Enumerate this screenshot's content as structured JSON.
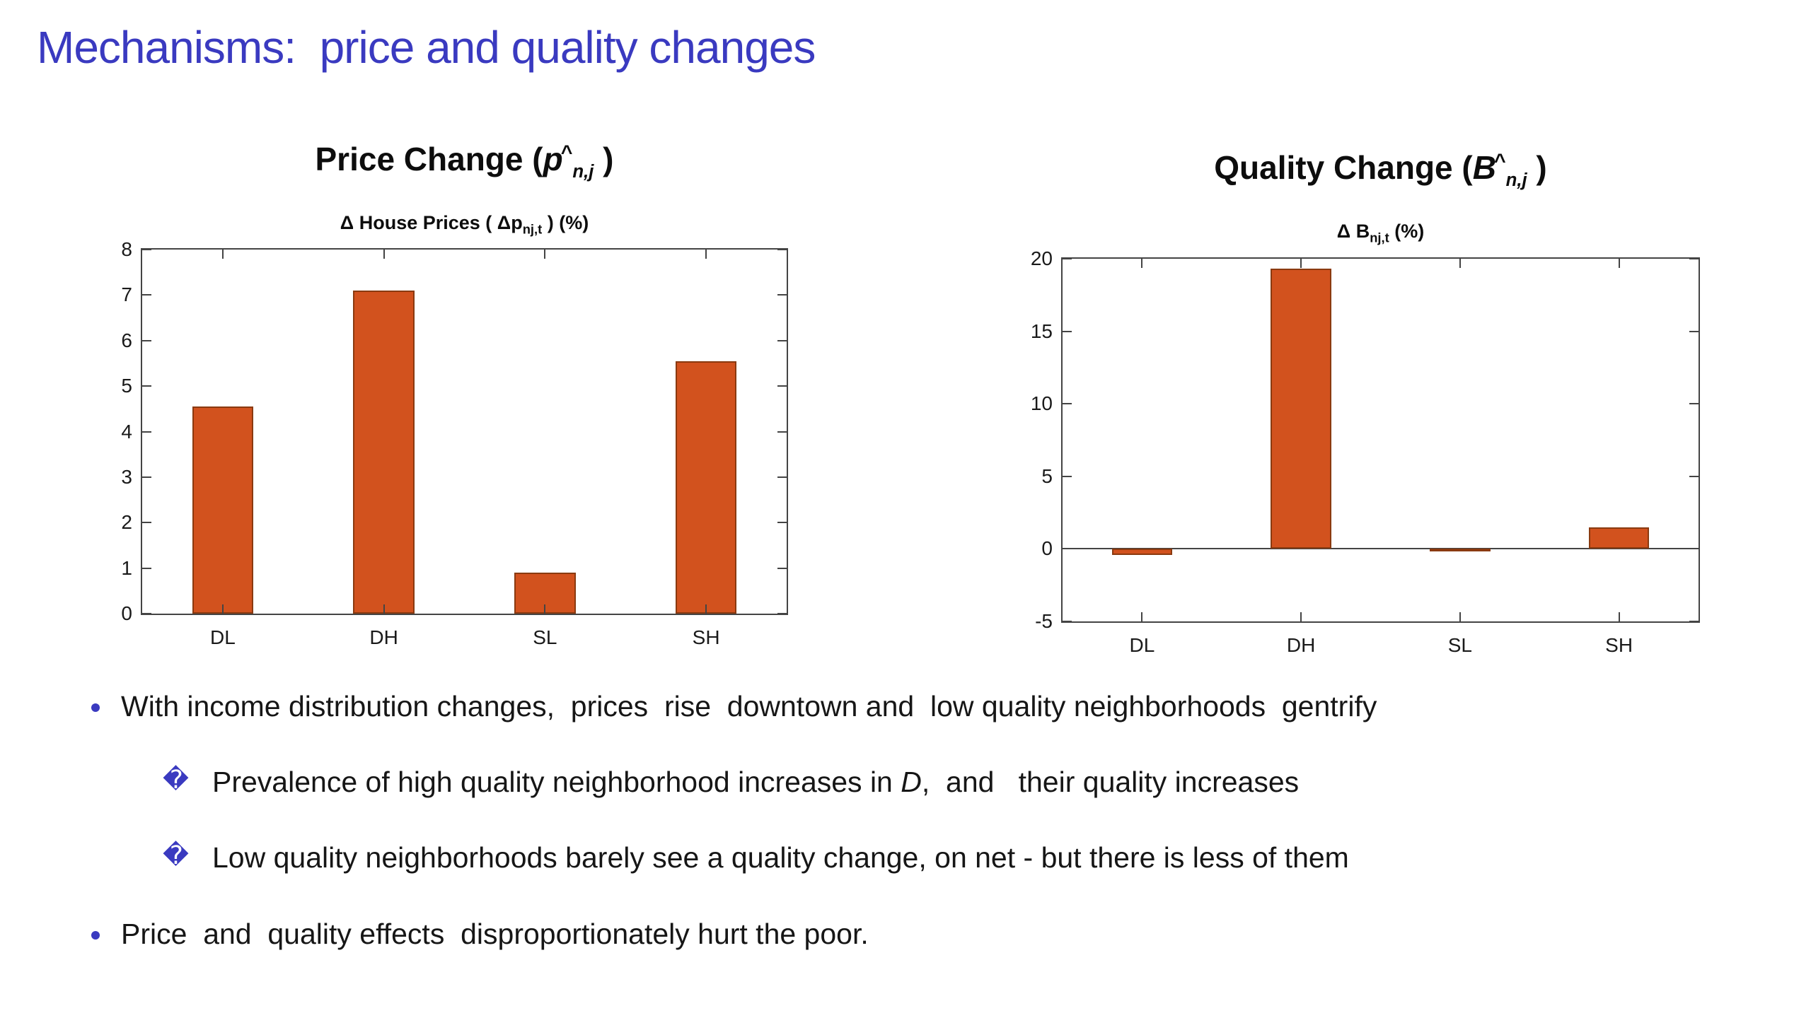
{
  "slide": {
    "title": "Mechanisms:  price and quality changes",
    "colors": {
      "title": "#3a3ac0",
      "bullet_marker": "#3a3ac0",
      "bar": "#d2521e",
      "bar_edge": "#8a3a10",
      "axis": "#444444"
    },
    "markers": {
      "dot": "•",
      "diamond": "�"
    },
    "bullets": [
      {
        "level": 1,
        "marker": "dot",
        "segments": [
          {
            "t": "With income distribution changes,  prices  rise  downtown and  low quality neighborhoods  gentrify"
          }
        ]
      },
      {
        "level": 2,
        "marker": "diamond",
        "segments": [
          {
            "t": "Prevalence of high quality neighborhood increases in "
          },
          {
            "t": "D",
            "i": true
          },
          {
            "t": ",  and   their quality increases"
          }
        ]
      },
      {
        "level": 2,
        "marker": "diamond",
        "segments": [
          {
            "t": "Low quality neighborhoods barely see a quality change, on net - but there is less of them"
          }
        ]
      },
      {
        "level": 1,
        "marker": "dot",
        "segments": [
          {
            "t": "Price  and  quality effects  disproportionately hurt the poor."
          }
        ]
      }
    ]
  },
  "chart_data": [
    {
      "type": "bar",
      "title": "Price Change (p̂n,j)",
      "title_prefix": "Price Change (",
      "title_var": "p",
      "title_hat": "^",
      "title_sub": "n,j",
      "title_suffix": " )",
      "subtitle": "Δ House Prices ( Δp_nj,t ) (%)",
      "subtitle_prefix": "Δ House Prices ( Δp",
      "subtitle_sub": "nj,t",
      "subtitle_suffix": " ) (%)",
      "categories": [
        "DL",
        "DH",
        "SL",
        "SH"
      ],
      "values": [
        4.55,
        7.1,
        0.9,
        5.55
      ],
      "xlabel": "",
      "ylabel": "",
      "ylim": [
        0,
        8
      ],
      "yticks": [
        0,
        1,
        2,
        3,
        4,
        5,
        6,
        7,
        8
      ],
      "grid": false,
      "legend": "none"
    },
    {
      "type": "bar",
      "title": "Quality Change (B̂n,j)",
      "title_prefix": "Quality Change (",
      "title_var": "B",
      "title_hat": "^",
      "title_sub": "n,j",
      "title_suffix": " )",
      "subtitle": "Δ B_nj,t (%)",
      "subtitle_prefix": "Δ B",
      "subtitle_sub": "nj,t",
      "subtitle_suffix": " (%)",
      "categories": [
        "DL",
        "DH",
        "SL",
        "SH"
      ],
      "values": [
        -0.4,
        19.3,
        -0.15,
        1.5
      ],
      "xlabel": "",
      "ylabel": "",
      "ylim": [
        -5,
        20
      ],
      "yticks": [
        -5,
        0,
        5,
        10,
        15,
        20
      ],
      "zero_line": true,
      "grid": false,
      "legend": "none"
    }
  ]
}
